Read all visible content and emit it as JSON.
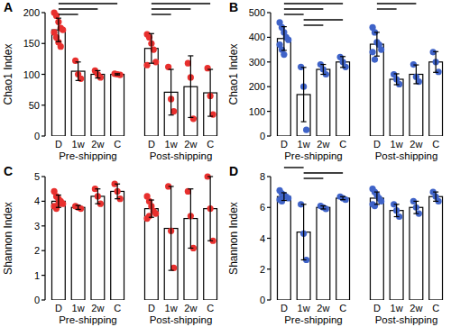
{
  "chart_data": [
    {
      "type": "bar",
      "title": "A",
      "y_label": "Chao1 Index",
      "categories": [
        "D",
        "1w",
        "2w",
        "C"
      ],
      "ylim": [
        0,
        200
      ],
      "yticks": [
        0,
        50,
        100,
        150,
        200
      ],
      "series": [
        {
          "name": "Pre-shipping",
          "color": "#e8302e",
          "values": [
            172,
            105,
            100,
            100
          ],
          "errors": [
            19,
            15,
            6,
            1
          ],
          "points": [
            [
              200,
              195,
              185,
              175,
              172,
              168,
              160,
              152,
              145
            ],
            [
              122,
              100,
              93
            ],
            [
              106,
              100,
              95
            ],
            [
              101,
              100,
              99
            ]
          ],
          "significance": [
            [
              0,
              3
            ],
            [
              0,
              2
            ],
            [
              0,
              1
            ]
          ]
        },
        {
          "name": "Post-shipping",
          "color": "#e8302e",
          "values": [
            142,
            71,
            80,
            70
          ],
          "errors": [
            24,
            37,
            50,
            38
          ],
          "points": [
            [
              165,
              160,
              150,
              140,
              120,
              115
            ],
            [
              112,
              60,
              40
            ],
            [
              118,
              95,
              28
            ],
            [
              110,
              65,
              35
            ]
          ],
          "significance": [
            [
              0,
              3
            ],
            [
              0,
              2
            ],
            [
              0,
              1
            ]
          ]
        }
      ]
    },
    {
      "type": "bar",
      "title": "B",
      "y_label": "Chao1 Index",
      "categories": [
        "D",
        "1w",
        "2w",
        "C"
      ],
      "ylim": [
        0,
        500
      ],
      "yticks": [
        0,
        100,
        200,
        300,
        400,
        500
      ],
      "series": [
        {
          "name": "Pre-shipping",
          "color": "#3f63c8",
          "values": [
            395,
            168,
            270,
            300
          ],
          "errors": [
            48,
            110,
            20,
            22
          ],
          "points": [
            [
              460,
              440,
              420,
              400,
              390,
              370,
              350,
              330
            ],
            [
              280,
              200,
              25
            ],
            [
              290,
              270,
              250
            ],
            [
              320,
              300,
              280
            ]
          ],
          "significance": [
            [
              0,
              3
            ],
            [
              0,
              2
            ],
            [
              0,
              1
            ],
            [
              1,
              3
            ],
            [
              1,
              2
            ]
          ]
        },
        {
          "name": "Post-shipping",
          "color": "#3f63c8",
          "values": [
            372,
            230,
            250,
            300
          ],
          "errors": [
            48,
            22,
            38,
            42
          ],
          "points": [
            [
              440,
              420,
              380,
              370,
              350,
              340,
              310
            ],
            [
              250,
              230,
              210
            ],
            [
              290,
              240,
              220
            ],
            [
              340,
              300,
              260
            ]
          ],
          "significance": [
            [
              0,
              2
            ],
            [
              0,
              1
            ]
          ]
        }
      ]
    },
    {
      "type": "bar",
      "title": "C",
      "y_label": "Shannon Index",
      "categories": [
        "D",
        "1w",
        "2w",
        "C"
      ],
      "ylim": [
        0,
        5
      ],
      "yticks": [
        0,
        1,
        2,
        3,
        4,
        5
      ],
      "series": [
        {
          "name": "Pre-shipping",
          "color": "#e8302e",
          "values": [
            4.0,
            3.75,
            4.2,
            4.4
          ],
          "errors": [
            0.25,
            0.08,
            0.3,
            0.3
          ],
          "points": [
            [
              4.4,
              4.2,
              4.1,
              4.0,
              3.9,
              3.8,
              3.7,
              3.9
            ],
            [
              3.8,
              3.75,
              3.7
            ],
            [
              4.5,
              4.2,
              3.9
            ],
            [
              4.7,
              4.4,
              4.1
            ]
          ],
          "significance": []
        },
        {
          "name": "Post-shipping",
          "color": "#e8302e",
          "values": [
            3.7,
            2.9,
            3.3,
            3.7
          ],
          "errors": [
            0.35,
            1.7,
            1.2,
            1.3
          ],
          "points": [
            [
              4.2,
              4.0,
              3.8,
              3.6,
              3.5,
              3.3,
              3.4
            ],
            [
              4.6,
              2.8,
              1.3
            ],
            [
              4.4,
              3.4,
              2.1
            ],
            [
              5.0,
              3.7,
              2.4
            ]
          ],
          "significance": []
        }
      ]
    },
    {
      "type": "bar",
      "title": "D",
      "y_label": "Shannon Index",
      "categories": [
        "D",
        "1w",
        "2w",
        "C"
      ],
      "ylim": [
        0,
        8
      ],
      "yticks": [
        0,
        2,
        4,
        6,
        8
      ],
      "series": [
        {
          "name": "Pre-shipping",
          "color": "#3f63c8",
          "values": [
            6.7,
            4.4,
            6.0,
            6.6
          ],
          "errors": [
            0.25,
            1.8,
            0.1,
            0.1
          ],
          "points": [
            [
              7.1,
              6.9,
              6.8,
              6.7,
              6.6,
              6.5,
              6.4
            ],
            [
              6.2,
              4.3,
              2.6
            ],
            [
              6.1,
              6.0,
              5.9
            ],
            [
              6.7,
              6.6,
              6.5
            ]
          ],
          "significance": [
            [
              0,
              1
            ],
            [
              1,
              3
            ],
            [
              1,
              2
            ]
          ]
        },
        {
          "name": "Post-shipping",
          "color": "#3f63c8",
          "values": [
            6.6,
            5.8,
            6.0,
            6.7
          ],
          "errors": [
            0.4,
            0.4,
            0.4,
            0.3
          ],
          "points": [
            [
              7.2,
              7.0,
              6.8,
              6.6,
              6.4,
              6.2,
              6.1
            ],
            [
              6.2,
              5.8,
              5.4
            ],
            [
              6.4,
              6.0,
              5.6
            ],
            [
              7.0,
              6.7,
              6.4
            ]
          ],
          "significance": []
        }
      ]
    }
  ]
}
